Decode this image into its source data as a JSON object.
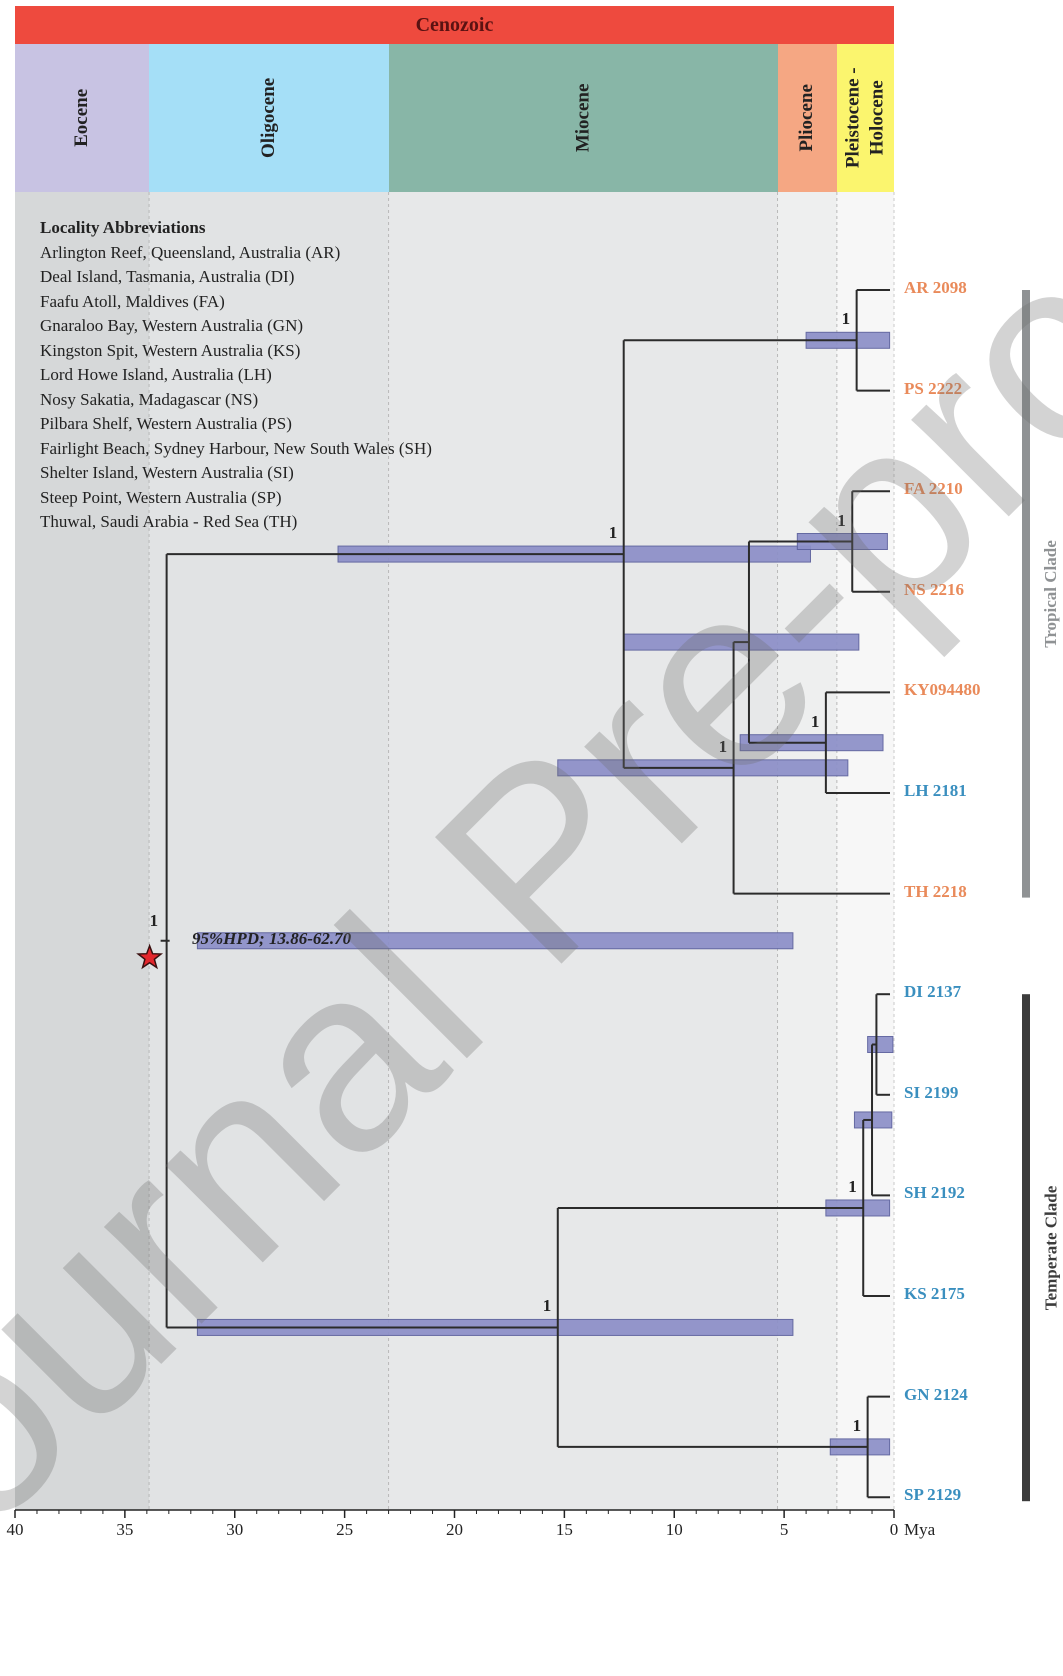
{
  "era": {
    "label": "Cenozoic",
    "color": "#ee4a3e"
  },
  "epochs": [
    {
      "key": "eocene",
      "label": "Eocene",
      "start": 40,
      "end": 33.9,
      "color": "#c8c3e3",
      "panel": "#d6d8d9"
    },
    {
      "key": "oligocene",
      "label": "Oligocene",
      "start": 33.9,
      "end": 23.0,
      "color": "#a5dff7",
      "panel": "#e1e3e4"
    },
    {
      "key": "miocene",
      "label": "Miocene",
      "start": 23.0,
      "end": 5.3,
      "color": "#88b6a7",
      "panel": "#e7e8e9"
    },
    {
      "key": "pliocene",
      "label": "Pliocene",
      "start": 5.3,
      "end": 2.6,
      "color": "#f5a783",
      "panel": "#eeefef"
    },
    {
      "key": "pleistocene",
      "label": "Pleistocene - Holocene",
      "start": 2.6,
      "end": 0,
      "color": "#fbf56e",
      "panel": "#f7f7f7"
    }
  ],
  "legend": {
    "title": "Locality Abbreviations",
    "items": [
      "Arlington Reef, Queensland, Australia (AR)",
      "Deal Island, Tasmania, Australia (DI)",
      "Faafu Atoll, Maldives (FA)",
      "Gnaraloo Bay, Western Australia (GN)",
      "Kingston Spit, Western Australia (KS)",
      "Lord Howe Island, Australia (LH)",
      "Nosy Sakatia, Madagascar (NS)",
      "Pilbara Shelf, Western Australia (PS)",
      "Fairlight Beach, Sydney Harbour, New South Wales (SH)",
      "Shelter Island, Western Australia (SI)",
      "Steep Point, Western Australia (SP)",
      "Thuwal, Saudi Arabia - Red Sea (TH)"
    ]
  },
  "tips": [
    {
      "label": "AR 2098",
      "color": "orange"
    },
    {
      "label": "PS 2222",
      "color": "orange"
    },
    {
      "label": "FA 2210",
      "color": "orange"
    },
    {
      "label": "NS 2216",
      "color": "orange"
    },
    {
      "label": "KY094480",
      "color": "orange"
    },
    {
      "label": "LH 2181",
      "color": "blue"
    },
    {
      "label": "TH 2218",
      "color": "orange"
    },
    {
      "label": "DI 2137",
      "color": "blue"
    },
    {
      "label": "SI 2199",
      "color": "blue"
    },
    {
      "label": "SH 2192",
      "color": "blue"
    },
    {
      "label": "KS 2175",
      "color": "blue"
    },
    {
      "label": "GN 2124",
      "color": "blue"
    },
    {
      "label": "SP 2129",
      "color": "blue"
    }
  ],
  "tree": {
    "nodes": [
      {
        "id": "n_root",
        "age": 33.1,
        "children": [
          "n_trop",
          "n_temp"
        ],
        "hpd": [
          31.7,
          4.6
        ],
        "support": "1"
      },
      {
        "id": "n_trop",
        "age": 12.3,
        "children": [
          "n_arps",
          "n_rest"
        ],
        "hpd": [
          25.3,
          3.8
        ],
        "support": "1"
      },
      {
        "id": "n_arps",
        "age": 1.7,
        "children": [
          "AR 2098",
          "PS 2222"
        ],
        "hpd": [
          4.0,
          0.2
        ],
        "support": "1"
      },
      {
        "id": "n_rest",
        "age": 7.3,
        "children": [
          "n_mid",
          "TH 2218"
        ],
        "hpd": [
          15.3,
          2.1
        ],
        "support": "1"
      },
      {
        "id": "n_mid",
        "age": 6.6,
        "children": [
          "n_fans",
          "n_kylh"
        ],
        "hpd": [
          12.3,
          1.6
        ],
        "support": ""
      },
      {
        "id": "n_fans",
        "age": 1.9,
        "children": [
          "FA 2210",
          "NS 2216"
        ],
        "hpd": [
          4.4,
          0.3
        ],
        "support": "1"
      },
      {
        "id": "n_kylh",
        "age": 3.1,
        "children": [
          "KY094480",
          "LH 2181"
        ],
        "hpd": [
          7.0,
          0.5
        ],
        "support": "1"
      },
      {
        "id": "n_temp",
        "age": 15.3,
        "children": [
          "n_t1",
          "n_gnsp"
        ],
        "hpd": [
          31.7,
          4.6
        ],
        "support": "1"
      },
      {
        "id": "n_t1",
        "age": 1.4,
        "children": [
          "n_t2",
          "KS 2175"
        ],
        "hpd": [
          3.1,
          0.2
        ],
        "support": "1"
      },
      {
        "id": "n_t2",
        "age": 1.0,
        "children": [
          "n_t3",
          "SH 2192"
        ],
        "hpd": [
          1.8,
          0.1
        ],
        "support": ""
      },
      {
        "id": "n_t3",
        "age": 0.8,
        "children": [
          "DI 2137",
          "SI 2199"
        ],
        "hpd": [
          1.2,
          0.05
        ],
        "support": ""
      },
      {
        "id": "n_gnsp",
        "age": 1.2,
        "children": [
          "GN 2124",
          "SP 2129"
        ],
        "hpd": [
          2.9,
          0.2
        ],
        "support": "1"
      }
    ],
    "calibration": {
      "support": "1",
      "label": "95%HPD; 13.86-62.70"
    }
  },
  "clades": [
    {
      "label": "Tropical Clade",
      "from": "AR 2098",
      "to": "TH 2218",
      "color": "#8f9294"
    },
    {
      "label": "Temperate Clade",
      "from": "DI 2137",
      "to": "SP 2129",
      "color": "#3c3c3c"
    }
  ],
  "axis": {
    "ticks": [
      40,
      35,
      30,
      25,
      20,
      15,
      10,
      5,
      0
    ],
    "unit": "Mya",
    "min": 40,
    "max": 0
  },
  "watermark": "Journal Pre-proof",
  "colors": {
    "hpd_bar": "#8c8fc8",
    "hpd_edge": "#5a5f9c",
    "branch": "#2b2b2b",
    "star": "#e3262c"
  }
}
